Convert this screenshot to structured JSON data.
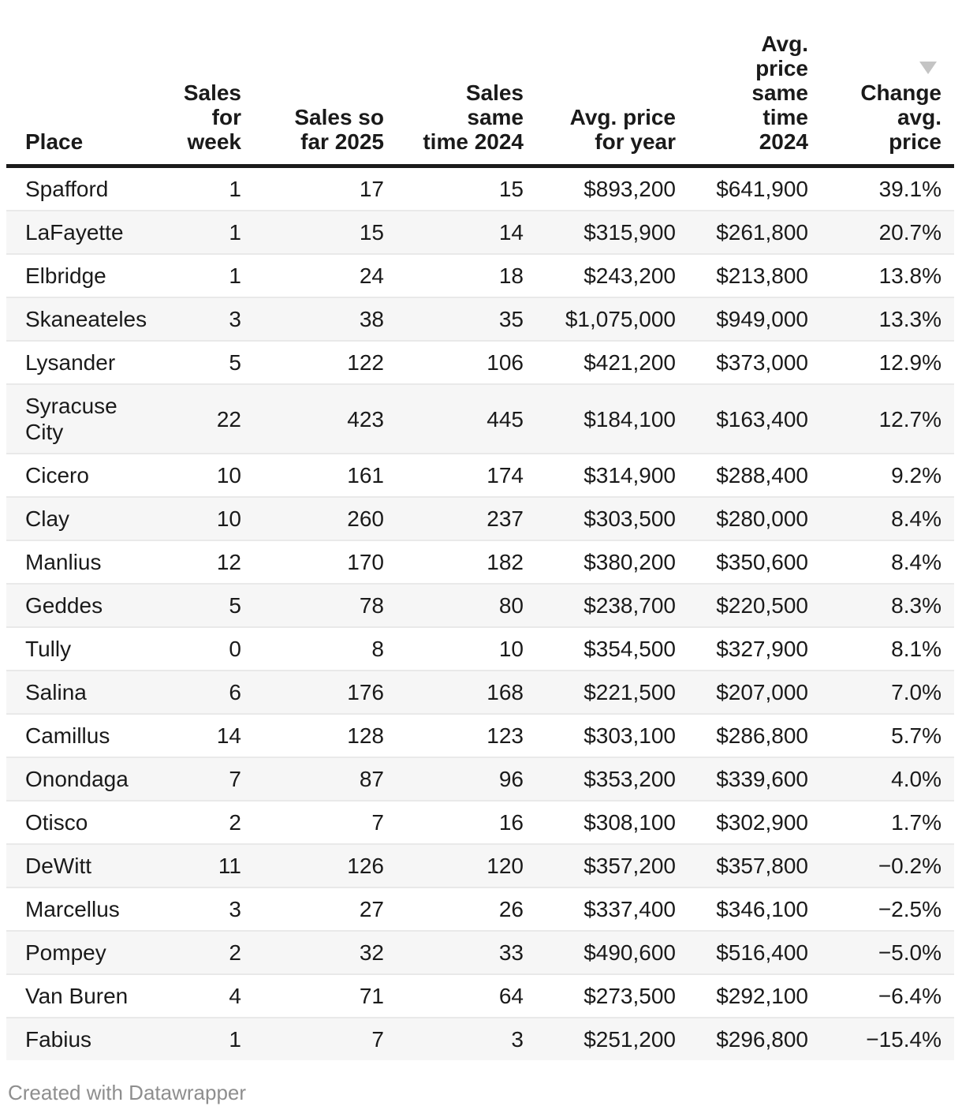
{
  "chart_data": {
    "type": "table",
    "columns": [
      {
        "label": "Place",
        "align": "left"
      },
      {
        "label": "Sales\nfor\nweek",
        "align": "right"
      },
      {
        "label": "Sales so\nfar 2025",
        "align": "right"
      },
      {
        "label": "Sales\nsame\ntime 2024",
        "align": "right"
      },
      {
        "label": "Avg. price\nfor year",
        "align": "right"
      },
      {
        "label": "Avg.\nprice\nsame\ntime\n2024",
        "align": "right"
      },
      {
        "label": "Change\navg.\nprice",
        "align": "right",
        "sorted": "descending"
      }
    ],
    "rows": [
      [
        "Spafford",
        "1",
        "17",
        "15",
        "$893,200",
        "$641,900",
        "39.1%"
      ],
      [
        "LaFayette",
        "1",
        "15",
        "14",
        "$315,900",
        "$261,800",
        "20.7%"
      ],
      [
        "Elbridge",
        "1",
        "24",
        "18",
        "$243,200",
        "$213,800",
        "13.8%"
      ],
      [
        "Skaneateles",
        "3",
        "38",
        "35",
        "$1,075,000",
        "$949,000",
        "13.3%"
      ],
      [
        "Lysander",
        "5",
        "122",
        "106",
        "$421,200",
        "$373,000",
        "12.9%"
      ],
      [
        "Syracuse\nCity",
        "22",
        "423",
        "445",
        "$184,100",
        "$163,400",
        "12.7%"
      ],
      [
        "Cicero",
        "10",
        "161",
        "174",
        "$314,900",
        "$288,400",
        "9.2%"
      ],
      [
        "Clay",
        "10",
        "260",
        "237",
        "$303,500",
        "$280,000",
        "8.4%"
      ],
      [
        "Manlius",
        "12",
        "170",
        "182",
        "$380,200",
        "$350,600",
        "8.4%"
      ],
      [
        "Geddes",
        "5",
        "78",
        "80",
        "$238,700",
        "$220,500",
        "8.3%"
      ],
      [
        "Tully",
        "0",
        "8",
        "10",
        "$354,500",
        "$327,900",
        "8.1%"
      ],
      [
        "Salina",
        "6",
        "176",
        "168",
        "$221,500",
        "$207,000",
        "7.0%"
      ],
      [
        "Camillus",
        "14",
        "128",
        "123",
        "$303,100",
        "$286,800",
        "5.7%"
      ],
      [
        "Onondaga",
        "7",
        "87",
        "96",
        "$353,200",
        "$339,600",
        "4.0%"
      ],
      [
        "Otisco",
        "2",
        "7",
        "16",
        "$308,100",
        "$302,900",
        "1.7%"
      ],
      [
        "DeWitt",
        "11",
        "126",
        "120",
        "$357,200",
        "$357,800",
        "−0.2%"
      ],
      [
        "Marcellus",
        "3",
        "27",
        "26",
        "$337,400",
        "$346,100",
        "−2.5%"
      ],
      [
        "Pompey",
        "2",
        "32",
        "33",
        "$490,600",
        "$516,400",
        "−5.0%"
      ],
      [
        "Van Buren",
        "4",
        "71",
        "64",
        "$273,500",
        "$292,100",
        "−6.4%"
      ],
      [
        "Fabius",
        "1",
        "7",
        "3",
        "$251,200",
        "$296,800",
        "−15.4%"
      ]
    ]
  },
  "footer": {
    "credit": "Created with Datawrapper"
  },
  "colors": {
    "stripe": "#f6f6f6",
    "header_rule": "#1a1a1a",
    "row_border": "#e9e9e9",
    "sort_arrow": "#c4c4c4",
    "footer_text": "#8e8e8e"
  }
}
